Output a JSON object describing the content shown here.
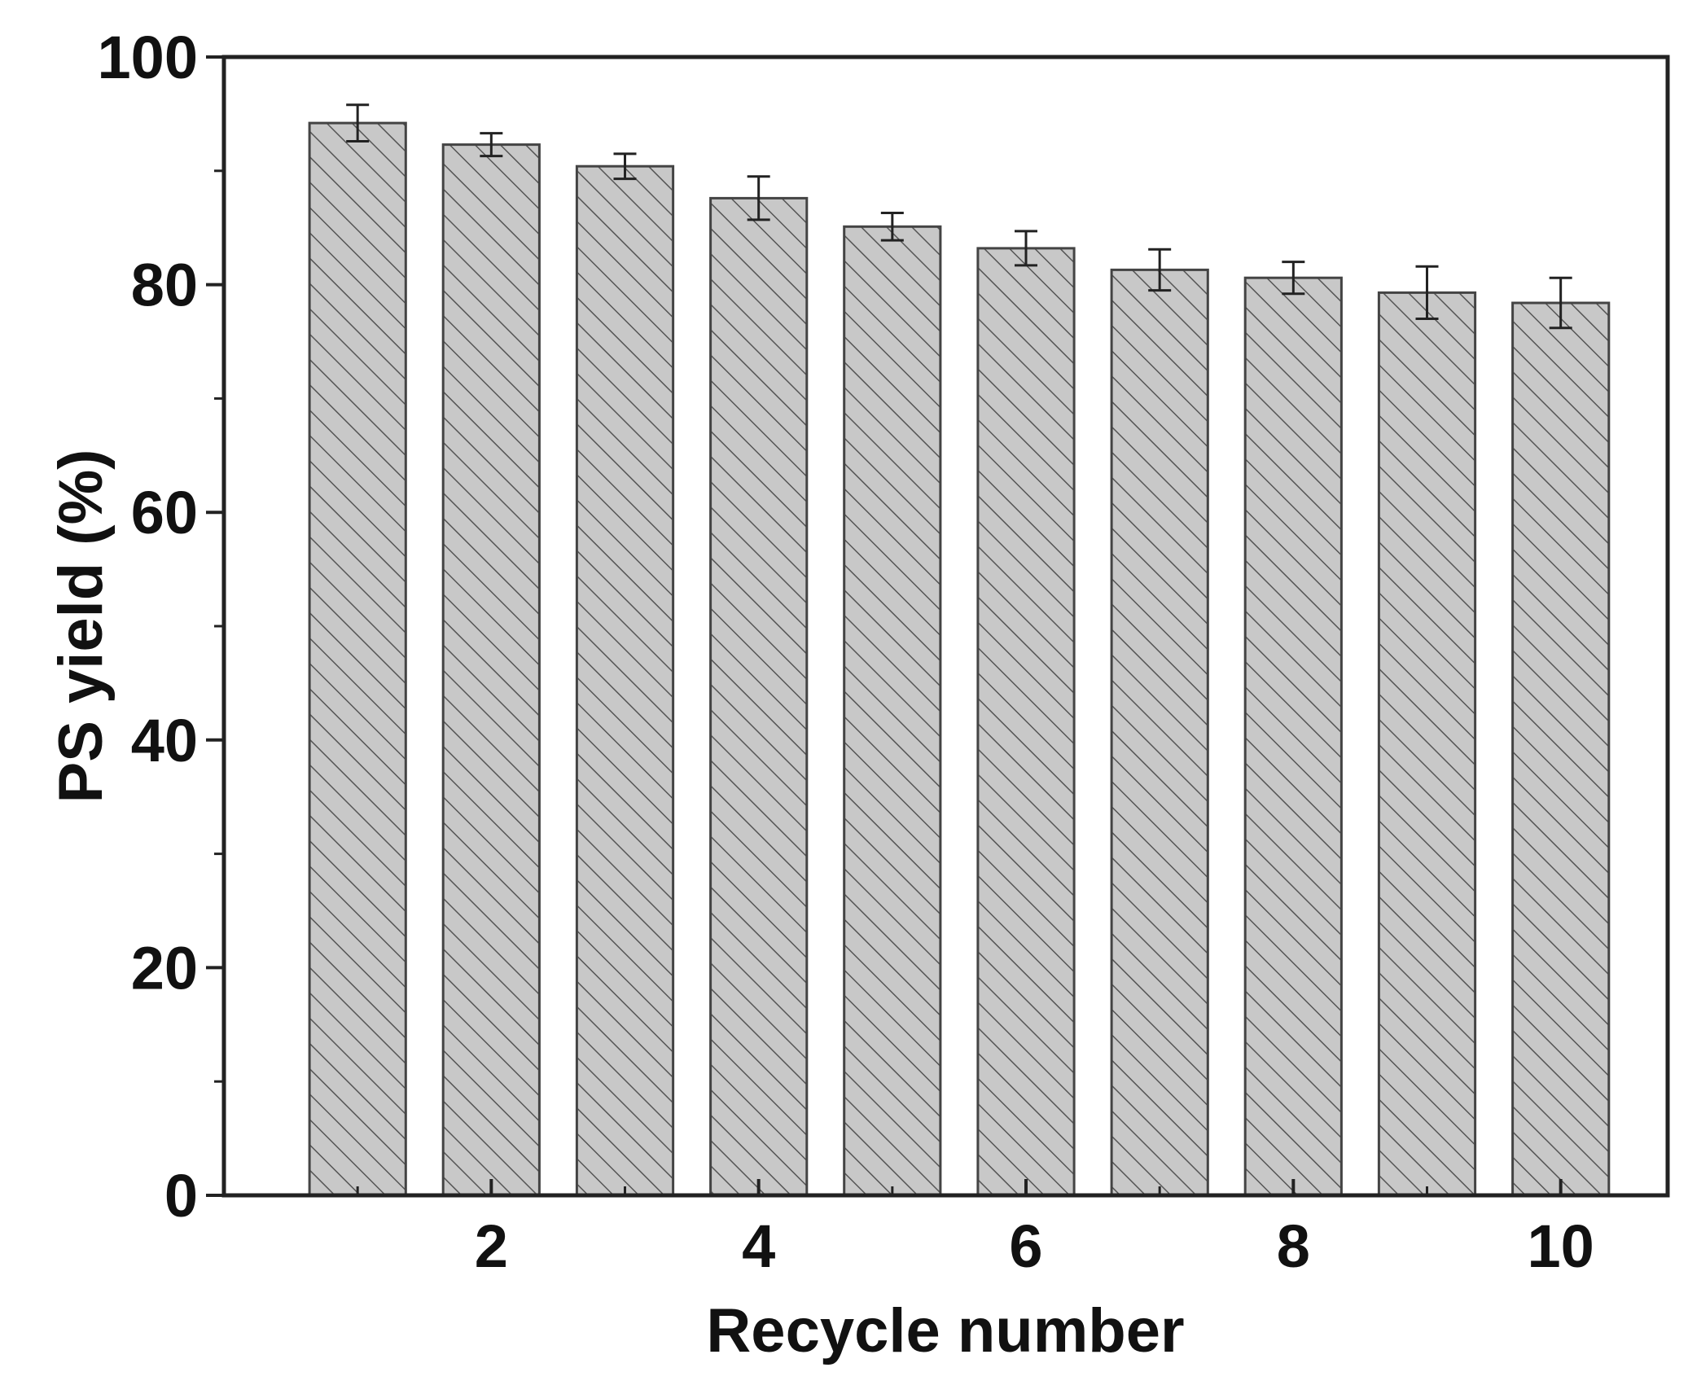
{
  "chart_data": {
    "type": "bar",
    "title": "",
    "xlabel": "Recycle number",
    "ylabel": "PS yield (%)",
    "categories": [
      1,
      2,
      3,
      4,
      5,
      6,
      7,
      8,
      9,
      10
    ],
    "values": [
      94.2,
      92.3,
      90.4,
      87.6,
      85.1,
      83.2,
      81.3,
      80.6,
      79.3,
      78.4
    ],
    "errors": [
      1.6,
      1.0,
      1.1,
      1.9,
      1.2,
      1.5,
      1.8,
      1.4,
      2.3,
      2.2
    ],
    "ylim": [
      0,
      100
    ],
    "xlim": [
      0,
      10.8
    ],
    "y_ticks": [
      "0",
      "20",
      "40",
      "60",
      "80",
      "100"
    ],
    "x_ticks": [
      "2",
      "4",
      "6",
      "8",
      "10"
    ],
    "y_minor_ticks": [
      10,
      30,
      50,
      70,
      90
    ],
    "x_minor_ticks": [
      1,
      3,
      5,
      7,
      9
    ],
    "grid": false,
    "legend": "none",
    "bar_fill": "hatched",
    "colors": {
      "bar_fill": "#c8c8c8",
      "hatch": "#555555",
      "bar_edge": "#444444",
      "axis": "#222222",
      "error_bar": "#222222"
    }
  }
}
